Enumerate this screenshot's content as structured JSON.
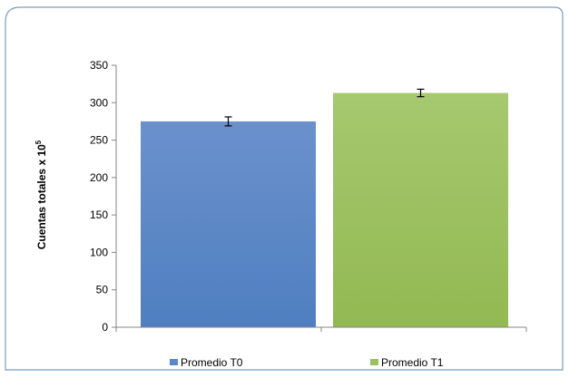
{
  "chart_data": {
    "type": "bar",
    "categories": [
      "Promedio T0",
      "Promedio T1"
    ],
    "values": [
      275,
      313
    ],
    "error": [
      6,
      5
    ],
    "ylabel": "Cuentas totales x 10",
    "ylabel_sup": "5",
    "xlabel": "",
    "ylim": [
      0,
      350
    ],
    "yticks": [
      0,
      50,
      100,
      150,
      200,
      250,
      300,
      350
    ],
    "legend": [
      "Promedio T0",
      "Promedio T1"
    ],
    "legend_position": "bottom",
    "grid": false,
    "colors": {
      "series_0_top": "#6b91cc",
      "series_0_bottom": "#4f7fc0",
      "series_1_top": "#a6c86f",
      "series_1_bottom": "#92b952",
      "frame": "#7a9bbf"
    }
  }
}
